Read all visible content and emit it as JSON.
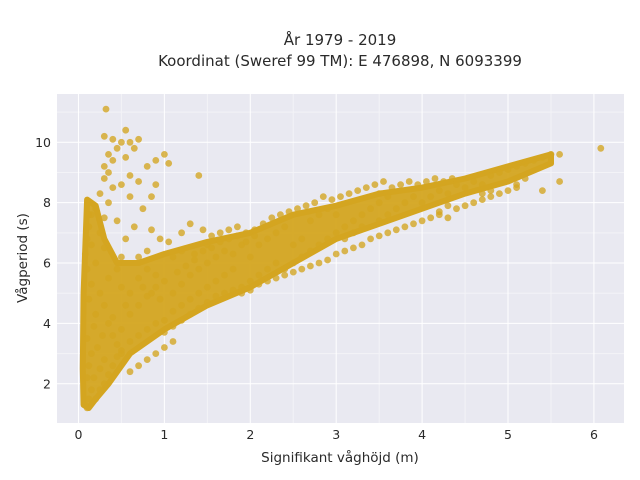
{
  "chart_data": {
    "type": "scatter",
    "title": "År 1979 - 2019",
    "subtitle": "Koordinat (Sweref 99 TM): E 476898, N 6093399",
    "xlabel": "Signifikant våghöjd (m)",
    "ylabel": "Vågperiod (s)",
    "xlim": [
      -0.25,
      6.35
    ],
    "ylim": [
      0.7,
      11.6
    ],
    "xticks": [
      0,
      1,
      2,
      3,
      4,
      5,
      6
    ],
    "yticks": [
      2,
      4,
      6,
      8,
      10
    ],
    "xtick_labels": [
      "0",
      "1",
      "2",
      "3",
      "4",
      "5",
      "6"
    ],
    "ytick_labels": [
      "2",
      "4",
      "6",
      "8",
      "10"
    ],
    "grid": true,
    "legend": "none",
    "marker_color": "#d4a520",
    "plot_background": "#e9e9f1",
    "series": [
      {
        "points": [
          [
            0.08,
            1.3
          ],
          [
            0.1,
            1.2
          ],
          [
            0.12,
            1.5
          ],
          [
            0.15,
            1.8
          ],
          [
            0.1,
            2.2
          ],
          [
            0.12,
            2.6
          ],
          [
            0.15,
            3.0
          ],
          [
            0.1,
            3.5
          ],
          [
            0.18,
            3.9
          ],
          [
            0.2,
            4.3
          ],
          [
            0.12,
            4.8
          ],
          [
            0.15,
            5.3
          ],
          [
            0.1,
            5.8
          ],
          [
            0.08,
            6.3
          ],
          [
            0.1,
            6.8
          ],
          [
            0.12,
            7.2
          ],
          [
            0.15,
            7.6
          ],
          [
            0.12,
            8.0
          ],
          [
            0.2,
            7.8
          ],
          [
            0.18,
            2.2
          ],
          [
            0.25,
            2.5
          ],
          [
            0.3,
            2.8
          ],
          [
            0.22,
            3.2
          ],
          [
            0.28,
            3.6
          ],
          [
            0.35,
            4.0
          ],
          [
            0.4,
            4.2
          ],
          [
            0.3,
            4.6
          ],
          [
            0.25,
            5.0
          ],
          [
            0.35,
            5.5
          ],
          [
            0.2,
            6.0
          ],
          [
            0.3,
            6.5
          ],
          [
            0.25,
            7.0
          ],
          [
            0.3,
            7.5
          ],
          [
            0.35,
            8.0
          ],
          [
            0.4,
            8.5
          ],
          [
            0.3,
            8.8
          ],
          [
            0.35,
            9.0
          ],
          [
            0.4,
            9.4
          ],
          [
            0.45,
            9.8
          ],
          [
            0.5,
            10.0
          ],
          [
            0.55,
            10.4
          ],
          [
            0.3,
            10.2
          ],
          [
            0.32,
            11.1
          ],
          [
            0.6,
            10.0
          ],
          [
            0.5,
            8.6
          ],
          [
            0.6,
            8.2
          ],
          [
            0.45,
            7.4
          ],
          [
            0.55,
            6.8
          ],
          [
            0.5,
            6.2
          ],
          [
            0.45,
            5.8
          ],
          [
            0.5,
            5.2
          ],
          [
            0.55,
            4.6
          ],
          [
            0.6,
            4.3
          ],
          [
            0.5,
            3.8
          ],
          [
            0.45,
            3.3
          ],
          [
            0.6,
            3.4
          ],
          [
            0.7,
            3.6
          ],
          [
            0.8,
            3.8
          ],
          [
            0.9,
            4.0
          ],
          [
            1.0,
            4.1
          ],
          [
            0.7,
            4.6
          ],
          [
            0.8,
            4.9
          ],
          [
            0.9,
            5.2
          ],
          [
            1.0,
            5.4
          ],
          [
            0.7,
            5.5
          ],
          [
            0.8,
            5.8
          ],
          [
            0.9,
            5.6
          ],
          [
            0.7,
            6.2
          ],
          [
            0.8,
            6.4
          ],
          [
            0.65,
            7.2
          ],
          [
            0.75,
            7.8
          ],
          [
            0.85,
            8.2
          ],
          [
            0.9,
            8.6
          ],
          [
            0.8,
            9.2
          ],
          [
            0.9,
            9.4
          ],
          [
            1.0,
            9.6
          ],
          [
            1.05,
            9.3
          ],
          [
            1.1,
            4.4
          ],
          [
            1.2,
            4.6
          ],
          [
            1.3,
            4.8
          ],
          [
            1.1,
            5.0
          ],
          [
            1.2,
            5.3
          ],
          [
            1.3,
            5.6
          ],
          [
            1.4,
            5.8
          ],
          [
            1.5,
            6.0
          ],
          [
            1.1,
            6.2
          ],
          [
            1.2,
            6.4
          ],
          [
            1.35,
            6.3
          ],
          [
            1.4,
            5.0
          ],
          [
            1.5,
            5.2
          ],
          [
            1.6,
            5.4
          ],
          [
            1.7,
            5.6
          ],
          [
            1.8,
            5.8
          ],
          [
            1.5,
            6.6
          ],
          [
            1.3,
            7.3
          ],
          [
            1.4,
            8.9
          ],
          [
            1.6,
            6.2
          ],
          [
            1.7,
            6.4
          ],
          [
            1.8,
            6.3
          ],
          [
            1.9,
            6.6
          ],
          [
            2.0,
            6.2
          ],
          [
            1.9,
            5.2
          ],
          [
            2.0,
            5.4
          ],
          [
            2.1,
            5.6
          ],
          [
            2.2,
            5.8
          ],
          [
            2.3,
            6.0
          ],
          [
            2.1,
            6.6
          ],
          [
            2.2,
            6.8
          ],
          [
            2.3,
            7.0
          ],
          [
            2.4,
            7.2
          ],
          [
            2.5,
            6.6
          ],
          [
            2.6,
            6.8
          ],
          [
            2.4,
            5.8
          ],
          [
            2.5,
            6.0
          ],
          [
            2.6,
            6.2
          ],
          [
            2.7,
            6.4
          ],
          [
            2.8,
            6.6
          ],
          [
            2.9,
            6.8
          ],
          [
            3.0,
            7.0
          ],
          [
            2.7,
            7.4
          ],
          [
            2.8,
            7.6
          ],
          [
            2.9,
            7.8
          ],
          [
            3.0,
            7.6
          ],
          [
            3.1,
            7.2
          ],
          [
            3.2,
            7.4
          ],
          [
            3.3,
            7.6
          ],
          [
            3.4,
            7.8
          ],
          [
            3.1,
            6.8
          ],
          [
            3.2,
            7.0
          ],
          [
            3.3,
            7.2
          ],
          [
            3.5,
            7.4
          ],
          [
            3.6,
            7.6
          ],
          [
            3.7,
            7.8
          ],
          [
            3.8,
            8.0
          ],
          [
            3.5,
            8.0
          ],
          [
            3.6,
            8.2
          ],
          [
            3.5,
            8.3
          ],
          [
            3.9,
            8.2
          ],
          [
            4.0,
            8.0
          ],
          [
            4.1,
            8.2
          ],
          [
            4.2,
            8.4
          ],
          [
            4.3,
            8.3
          ],
          [
            4.4,
            8.6
          ],
          [
            4.2,
            7.6
          ],
          [
            4.3,
            7.9
          ],
          [
            4.5,
            8.5
          ],
          [
            4.6,
            8.7
          ],
          [
            4.7,
            8.6
          ],
          [
            4.8,
            8.9
          ],
          [
            4.9,
            9.0
          ],
          [
            4.7,
            8.3
          ],
          [
            4.8,
            8.4
          ],
          [
            5.0,
            9.1
          ],
          [
            5.1,
            9.2
          ],
          [
            5.2,
            9.3
          ],
          [
            5.1,
            8.6
          ],
          [
            5.2,
            8.8
          ],
          [
            5.3,
            9.4
          ],
          [
            5.4,
            9.5
          ],
          [
            5.5,
            9.6
          ],
          [
            5.4,
            8.4
          ],
          [
            5.6,
            9.6
          ],
          [
            5.6,
            8.7
          ],
          [
            6.08,
            9.8
          ],
          [
            0.2,
            1.5
          ],
          [
            0.25,
            1.8
          ],
          [
            0.3,
            2.0
          ],
          [
            0.35,
            2.3
          ],
          [
            0.4,
            2.6
          ],
          [
            0.45,
            2.9
          ],
          [
            0.5,
            3.1
          ],
          [
            0.15,
            6.6
          ],
          [
            0.12,
            7.6
          ],
          [
            0.25,
            8.3
          ],
          [
            0.3,
            9.2
          ],
          [
            0.35,
            9.6
          ],
          [
            0.4,
            10.1
          ],
          [
            0.55,
            9.5
          ],
          [
            0.65,
            9.8
          ],
          [
            0.7,
            10.1
          ],
          [
            0.6,
            8.9
          ],
          [
            0.7,
            8.7
          ],
          [
            0.85,
            7.1
          ],
          [
            0.95,
            6.8
          ],
          [
            1.05,
            6.7
          ],
          [
            1.2,
            7.0
          ],
          [
            1.45,
            7.1
          ],
          [
            1.55,
            6.9
          ],
          [
            1.65,
            7.0
          ],
          [
            1.75,
            7.1
          ],
          [
            1.85,
            7.2
          ],
          [
            1.95,
            7.0
          ],
          [
            2.05,
            7.1
          ],
          [
            2.15,
            7.3
          ],
          [
            2.25,
            7.5
          ],
          [
            2.35,
            7.6
          ],
          [
            2.45,
            7.7
          ],
          [
            2.55,
            7.8
          ],
          [
            2.65,
            7.9
          ],
          [
            2.75,
            8.0
          ],
          [
            2.85,
            8.2
          ],
          [
            2.95,
            8.1
          ],
          [
            3.05,
            8.2
          ],
          [
            3.15,
            8.3
          ],
          [
            3.25,
            8.4
          ],
          [
            3.35,
            8.5
          ],
          [
            3.45,
            8.6
          ],
          [
            3.55,
            8.7
          ],
          [
            3.65,
            8.5
          ],
          [
            3.75,
            8.6
          ],
          [
            3.85,
            8.7
          ],
          [
            3.95,
            8.6
          ],
          [
            4.05,
            8.7
          ],
          [
            4.15,
            8.8
          ],
          [
            4.25,
            8.7
          ],
          [
            4.35,
            8.8
          ],
          [
            1.0,
            3.7
          ],
          [
            1.1,
            3.9
          ],
          [
            1.2,
            4.1
          ],
          [
            1.3,
            4.3
          ],
          [
            1.4,
            4.5
          ],
          [
            1.5,
            4.7
          ],
          [
            1.6,
            4.9
          ],
          [
            1.7,
            5.0
          ],
          [
            1.8,
            5.1
          ],
          [
            1.9,
            5.0
          ],
          [
            2.0,
            5.1
          ],
          [
            2.1,
            5.3
          ],
          [
            2.2,
            5.4
          ],
          [
            2.3,
            5.5
          ],
          [
            2.4,
            5.6
          ],
          [
            2.5,
            5.7
          ],
          [
            2.6,
            5.8
          ],
          [
            2.7,
            5.9
          ],
          [
            2.8,
            6.0
          ],
          [
            2.9,
            6.1
          ],
          [
            3.0,
            6.3
          ],
          [
            3.1,
            6.4
          ],
          [
            3.2,
            6.5
          ],
          [
            3.3,
            6.6
          ],
          [
            3.4,
            6.8
          ],
          [
            3.5,
            6.9
          ],
          [
            3.6,
            7.0
          ],
          [
            3.7,
            7.1
          ],
          [
            3.8,
            7.2
          ],
          [
            3.9,
            7.3
          ],
          [
            4.0,
            7.4
          ],
          [
            4.1,
            7.5
          ],
          [
            4.2,
            7.7
          ],
          [
            4.3,
            7.5
          ],
          [
            4.4,
            7.8
          ],
          [
            4.5,
            7.9
          ],
          [
            4.6,
            8.0
          ],
          [
            4.7,
            8.1
          ],
          [
            4.8,
            8.2
          ],
          [
            4.9,
            8.3
          ],
          [
            5.0,
            8.4
          ],
          [
            5.1,
            8.5
          ],
          [
            0.6,
            2.4
          ],
          [
            0.7,
            2.6
          ],
          [
            0.8,
            2.8
          ],
          [
            0.9,
            3.0
          ],
          [
            1.0,
            3.2
          ],
          [
            1.1,
            3.4
          ],
          [
            0.5,
            3.0
          ],
          [
            0.4,
            3.6
          ],
          [
            0.6,
            5.0
          ],
          [
            0.75,
            5.2
          ],
          [
            0.85,
            5.0
          ],
          [
            0.95,
            4.8
          ],
          [
            1.15,
            5.7
          ],
          [
            1.25,
            5.9
          ],
          [
            1.35,
            6.1
          ],
          [
            1.45,
            6.4
          ],
          [
            1.55,
            6.5
          ],
          [
            1.65,
            6.7
          ],
          [
            1.75,
            6.8
          ],
          [
            1.85,
            6.9
          ],
          [
            1.95,
            6.7
          ],
          [
            2.05,
            6.9
          ]
        ]
      }
    ]
  }
}
